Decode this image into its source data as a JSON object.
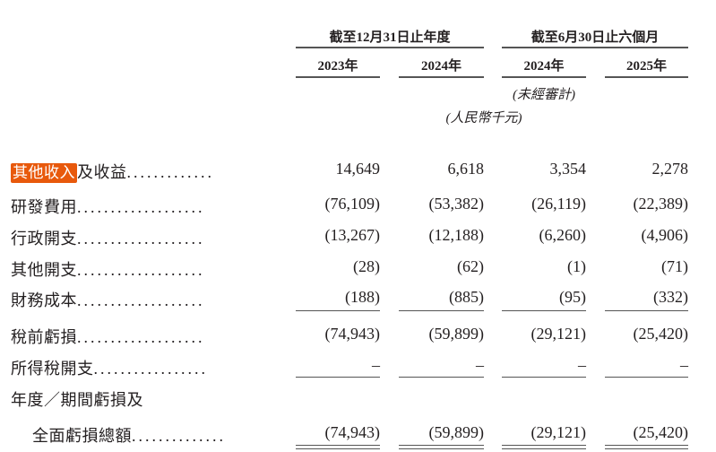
{
  "header": {
    "groups": [
      "截至12月31日止年度",
      "截至6月30日止六個月"
    ],
    "years": [
      "2023年",
      "2024年",
      "2024年",
      "2025年"
    ],
    "unaudited_note": "(未經審計)",
    "currency_note": "(人民幣千元)"
  },
  "highlight_color": "#e8590c",
  "rows": [
    {
      "label_highlight": "其他收入",
      "label": "及收益",
      "dots": ".............",
      "values": [
        "14,649",
        "6,618",
        "3,354",
        "2,278"
      ]
    },
    {
      "label": "研發費用",
      "dots": "...................",
      "values": [
        "(76,109)",
        "(53,382)",
        "(26,119)",
        "(22,389)"
      ]
    },
    {
      "label": "行政開支",
      "dots": "...................",
      "values": [
        "(13,267)",
        "(12,188)",
        "(6,260)",
        "(4,906)"
      ]
    },
    {
      "label": "其他開支",
      "dots": "...................",
      "values": [
        "(28)",
        "(62)",
        "(1)",
        "(71)"
      ]
    },
    {
      "label": "財務成本",
      "dots": "...................",
      "values": [
        "(188)",
        "(885)",
        "(95)",
        "(332)"
      ]
    },
    {
      "label": "稅前虧損",
      "dots": "...................",
      "values": [
        "(74,943)",
        "(59,899)",
        "(29,121)",
        "(25,420)"
      ]
    },
    {
      "label": "所得稅開支",
      "dots": ".................",
      "values": [
        "–",
        "–",
        "–",
        "–"
      ]
    },
    {
      "label": "年度／期間虧損及"
    },
    {
      "label": "全面虧損總額",
      "dots": "..............",
      "values": [
        "(74,943)",
        "(59,899)",
        "(29,121)",
        "(25,420)"
      ]
    }
  ]
}
